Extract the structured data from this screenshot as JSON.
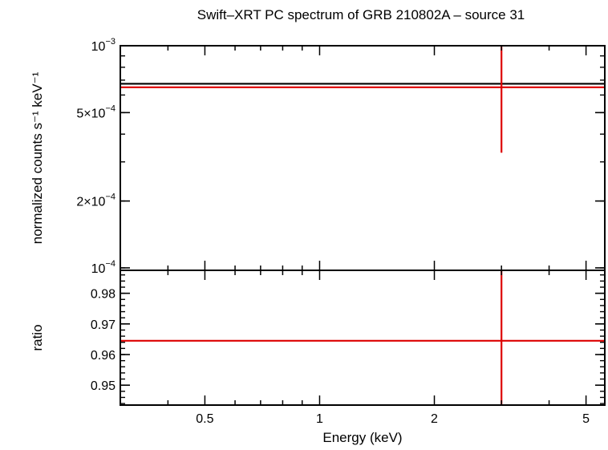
{
  "chart_data": {
    "type": "line",
    "title": "Swift–XRT PC spectrum of GRB 210802A – source 31",
    "xlabel": "Energy (keV)",
    "x_scale": "log",
    "xlim": [
      0.3,
      5.6
    ],
    "x_ticks": [
      0.5,
      1,
      2,
      5
    ],
    "x_tick_labels": [
      "0.5",
      "1",
      "2",
      "5"
    ],
    "panels": [
      {
        "name": "spectrum",
        "ylabel": "normalized counts s⁻¹ keV⁻¹",
        "y_scale": "log",
        "ylim": [
          9.75e-05,
          0.001
        ],
        "y_ticks": [
          {
            "value": 0.001,
            "mant": "10",
            "exp": "−3"
          },
          {
            "value": 0.0005,
            "mant": "5×10",
            "exp": "−4"
          },
          {
            "value": 0.0002,
            "mant": "2×10",
            "exp": "−4"
          },
          {
            "value": 0.0001,
            "mant": "10",
            "exp": "−4"
          }
        ],
        "series": [
          {
            "kind": "model",
            "color": "#000000",
            "values": [
              {
                "x": 0.3,
                "y": 0.000674
              },
              {
                "x": 5.6,
                "y": 0.000674
              }
            ]
          },
          {
            "kind": "data",
            "color": "#dd0000",
            "values": [
              {
                "x": 3.0,
                "y": 0.00065,
                "xerr": [
                  0.3,
                  5.6
                ],
                "yerr": [
                  0.00033,
                  0.001
                ]
              }
            ]
          }
        ]
      },
      {
        "name": "ratio",
        "ylabel": "ratio",
        "y_scale": "linear",
        "ylim": [
          0.9435,
          0.9875
        ],
        "y_ticks": [
          {
            "value": 0.95,
            "label": "0.95"
          },
          {
            "value": 0.96,
            "label": "0.96"
          },
          {
            "value": 0.97,
            "label": "0.97"
          },
          {
            "value": 0.98,
            "label": "0.98"
          }
        ],
        "series": [
          {
            "kind": "data",
            "color": "#dd0000",
            "values": [
              {
                "x": 3.0,
                "y": 0.9645,
                "xerr": [
                  0.3,
                  5.6
                ],
                "yerr": [
                  0.9435,
                  0.9875
                ]
              }
            ]
          }
        ]
      }
    ]
  }
}
